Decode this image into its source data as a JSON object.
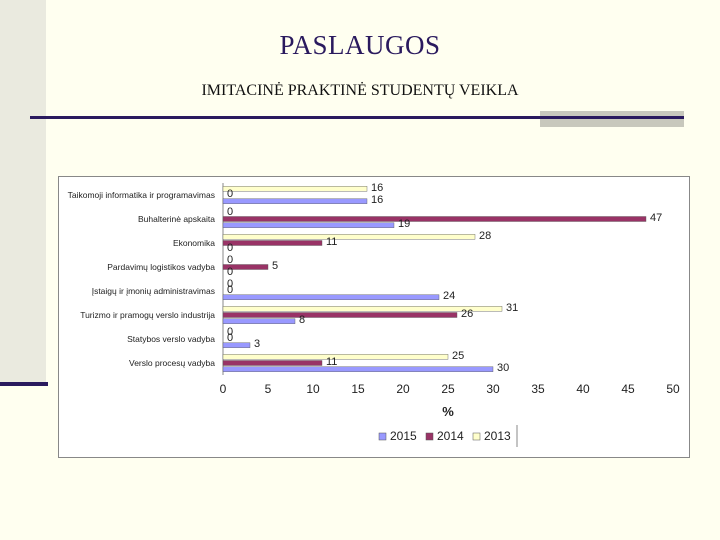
{
  "slide": {
    "title": "PASLAUGOS",
    "subtitle": "IMITACINĖ PRAKTINĖ STUDENTŲ VEIKLA"
  },
  "colors": {
    "title": "#2a1a5e",
    "series_2015": "#9999ff",
    "series_2014": "#993366",
    "series_2013": "#ffffcc"
  },
  "chart_data": {
    "type": "bar",
    "orientation": "horizontal",
    "categories": [
      "Taikomoji informatika ir programavimas",
      "Buhalterinė apskaita",
      "Ekonomika",
      "Pardavimų logistikos vadyba",
      "Įstaigų ir įmonių administravimas",
      "Turizmo ir pramogų verslo industrija",
      "Statybos verslo vadyba",
      "Verslo procesų vadyba"
    ],
    "series": [
      {
        "name": "2015",
        "color": "#9999ff",
        "values": [
          16,
          19,
          0,
          0,
          24,
          8,
          3,
          30
        ]
      },
      {
        "name": "2014",
        "color": "#993366",
        "values": [
          0,
          47,
          11,
          5,
          0,
          26,
          0,
          11
        ]
      },
      {
        "name": "2013",
        "color": "#ffffcc",
        "values": [
          16,
          0,
          28,
          0,
          0,
          31,
          0,
          25
        ]
      }
    ],
    "xlabel": "%",
    "xlim": [
      0,
      50
    ],
    "xticks": [
      "0",
      "5",
      "10",
      "15",
      "20",
      "25",
      "30",
      "35",
      "40",
      "45",
      "50"
    ],
    "grid": false,
    "legend": "bottom"
  }
}
